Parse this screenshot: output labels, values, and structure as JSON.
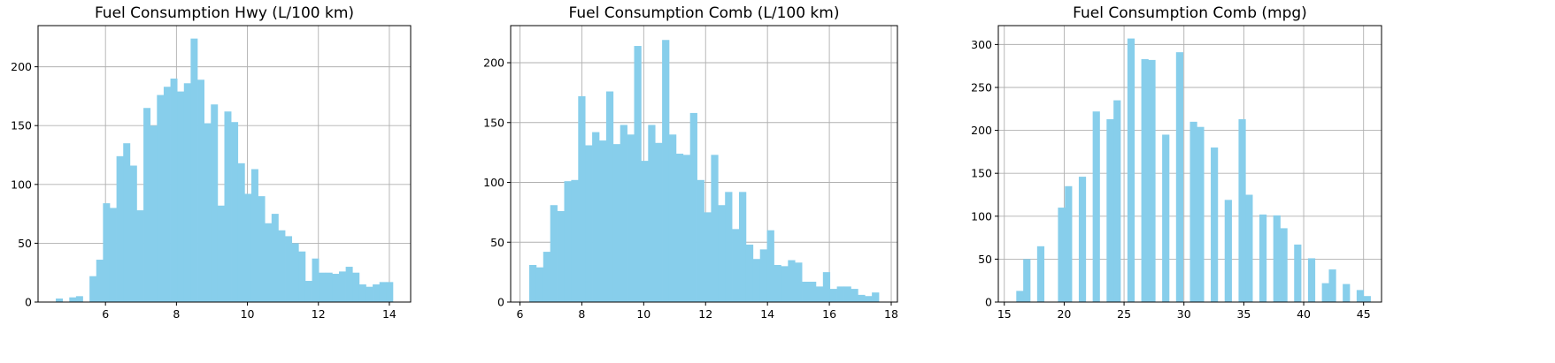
{
  "chart_data": [
    {
      "type": "bar",
      "title": "Fuel Consumption Hwy (L/100 km)",
      "xlabel": "",
      "ylabel": "",
      "xlim": [
        4.1,
        14.6
      ],
      "ylim": [
        0,
        235
      ],
      "xticks": [
        6,
        8,
        10,
        12,
        14
      ],
      "yticks": [
        0,
        50,
        100,
        150,
        200
      ],
      "grid": true,
      "bar_color": "#87ceeb",
      "bin_start": 4.6,
      "bin_width": 0.19,
      "values": [
        3,
        0,
        4,
        5,
        0,
        22,
        36,
        84,
        80,
        124,
        135,
        116,
        78,
        165,
        150,
        176,
        183,
        190,
        179,
        186,
        224,
        189,
        152,
        168,
        82,
        162,
        153,
        118,
        92,
        113,
        90,
        67,
        75,
        61,
        56,
        50,
        43,
        18,
        37,
        25,
        25,
        24,
        26,
        30,
        25,
        15,
        13,
        15,
        17,
        17
      ]
    },
    {
      "type": "bar",
      "title": "Fuel Consumption Comb (L/100 km)",
      "xlabel": "",
      "ylabel": "",
      "xlim": [
        5.7,
        18.2
      ],
      "ylim": [
        0,
        231
      ],
      "xticks": [
        6,
        8,
        10,
        12,
        14,
        16,
        18
      ],
      "yticks": [
        0,
        50,
        100,
        150,
        200
      ],
      "grid": true,
      "bar_color": "#87ceeb",
      "bin_start": 6.3,
      "bin_width": 0.226,
      "values": [
        31,
        29,
        42,
        81,
        76,
        101,
        102,
        172,
        131,
        142,
        135,
        176,
        132,
        148,
        140,
        214,
        118,
        148,
        133,
        219,
        140,
        124,
        123,
        158,
        102,
        75,
        123,
        81,
        92,
        61,
        92,
        48,
        36,
        44,
        60,
        31,
        30,
        35,
        33,
        17,
        17,
        13,
        25,
        11,
        13,
        13,
        11,
        6,
        5,
        8
      ]
    },
    {
      "type": "bar",
      "title": "Fuel Consumption Comb (mpg)",
      "xlabel": "",
      "ylabel": "",
      "xlim": [
        14.5,
        46.5
      ],
      "ylim": [
        0,
        322
      ],
      "xticks": [
        15,
        20,
        25,
        30,
        35,
        40,
        45
      ],
      "yticks": [
        0,
        50,
        100,
        150,
        200,
        250,
        300
      ],
      "grid": true,
      "bar_color": "#87ceeb",
      "bin_start": 16,
      "bin_width": 0.58,
      "values": [
        13,
        50,
        0,
        65,
        0,
        0,
        110,
        135,
        0,
        146,
        0,
        222,
        0,
        213,
        235,
        0,
        307,
        0,
        283,
        282,
        0,
        195,
        0,
        291,
        0,
        210,
        204,
        0,
        180,
        0,
        119,
        0,
        213,
        125,
        0,
        102,
        0,
        101,
        86,
        0,
        67,
        0,
        51,
        0,
        22,
        38,
        0,
        21,
        0,
        14,
        7
      ]
    }
  ]
}
